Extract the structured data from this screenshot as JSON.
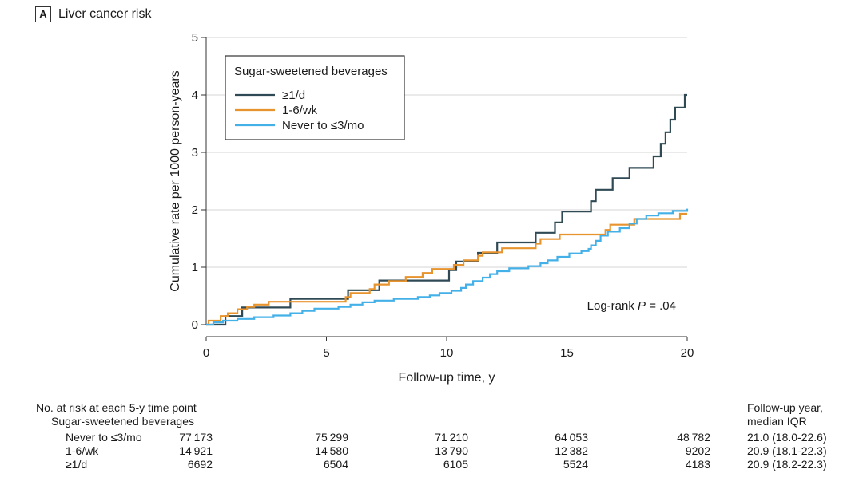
{
  "panel": {
    "letter": "A",
    "title": "Liver cancer risk"
  },
  "chart_data": {
    "type": "line",
    "step": true,
    "title": "Liver cancer risk",
    "xlabel": "Follow-up time, y",
    "ylabel": "Cumulative rate per 1000 person-years",
    "xlim": [
      0,
      20
    ],
    "ylim": [
      0,
      5
    ],
    "xticks": [
      0,
      5,
      10,
      15,
      20
    ],
    "yticks": [
      0,
      1,
      2,
      3,
      4,
      5
    ],
    "grid": "horizontal",
    "legend": {
      "title": "Sugar-sweetened beverages",
      "position": "top-left"
    },
    "annotation": {
      "prefix": "Log-rank ",
      "italic": "P",
      "suffix": " = .04"
    },
    "series": [
      {
        "name": "≥1/d",
        "color": "#2f4a55",
        "points": [
          [
            0,
            0
          ],
          [
            0.8,
            0
          ],
          [
            0.8,
            0.15
          ],
          [
            1.5,
            0.15
          ],
          [
            1.5,
            0.3
          ],
          [
            3.5,
            0.3
          ],
          [
            3.5,
            0.45
          ],
          [
            5.9,
            0.45
          ],
          [
            5.9,
            0.6
          ],
          [
            7.2,
            0.6
          ],
          [
            7.2,
            0.77
          ],
          [
            10.1,
            0.77
          ],
          [
            10.1,
            0.95
          ],
          [
            10.4,
            0.95
          ],
          [
            10.4,
            1.1
          ],
          [
            11.3,
            1.1
          ],
          [
            11.3,
            1.25
          ],
          [
            12.1,
            1.25
          ],
          [
            12.1,
            1.43
          ],
          [
            13.7,
            1.43
          ],
          [
            13.7,
            1.6
          ],
          [
            14.5,
            1.6
          ],
          [
            14.5,
            1.78
          ],
          [
            14.8,
            1.78
          ],
          [
            14.8,
            1.97
          ],
          [
            16.0,
            1.97
          ],
          [
            16.0,
            2.15
          ],
          [
            16.2,
            2.15
          ],
          [
            16.2,
            2.35
          ],
          [
            16.9,
            2.35
          ],
          [
            16.9,
            2.55
          ],
          [
            17.6,
            2.55
          ],
          [
            17.6,
            2.73
          ],
          [
            18.6,
            2.73
          ],
          [
            18.6,
            2.93
          ],
          [
            18.9,
            2.93
          ],
          [
            18.9,
            3.15
          ],
          [
            19.1,
            3.15
          ],
          [
            19.1,
            3.35
          ],
          [
            19.3,
            3.35
          ],
          [
            19.3,
            3.57
          ],
          [
            19.5,
            3.57
          ],
          [
            19.5,
            3.78
          ],
          [
            19.9,
            3.78
          ],
          [
            19.9,
            4.0
          ],
          [
            20,
            4.0
          ]
        ]
      },
      {
        "name": "1-6/wk",
        "color": "#e8942e",
        "points": [
          [
            0,
            0
          ],
          [
            0.1,
            0
          ],
          [
            0.1,
            0.07
          ],
          [
            0.6,
            0.07
          ],
          [
            0.6,
            0.15
          ],
          [
            0.9,
            0.15
          ],
          [
            0.9,
            0.2
          ],
          [
            1.3,
            0.2
          ],
          [
            1.3,
            0.27
          ],
          [
            1.7,
            0.27
          ],
          [
            1.7,
            0.31
          ],
          [
            2.0,
            0.31
          ],
          [
            2.0,
            0.35
          ],
          [
            2.6,
            0.35
          ],
          [
            2.6,
            0.4
          ],
          [
            5.8,
            0.4
          ],
          [
            5.8,
            0.48
          ],
          [
            6.0,
            0.48
          ],
          [
            6.0,
            0.55
          ],
          [
            6.8,
            0.55
          ],
          [
            6.8,
            0.62
          ],
          [
            7.0,
            0.62
          ],
          [
            7.0,
            0.7
          ],
          [
            7.6,
            0.7
          ],
          [
            7.6,
            0.76
          ],
          [
            8.3,
            0.76
          ],
          [
            8.3,
            0.83
          ],
          [
            9.0,
            0.83
          ],
          [
            9.0,
            0.9
          ],
          [
            9.4,
            0.9
          ],
          [
            9.4,
            0.97
          ],
          [
            10.3,
            0.97
          ],
          [
            10.3,
            1.04
          ],
          [
            10.7,
            1.04
          ],
          [
            10.7,
            1.12
          ],
          [
            11.3,
            1.12
          ],
          [
            11.3,
            1.2
          ],
          [
            11.5,
            1.2
          ],
          [
            11.5,
            1.26
          ],
          [
            12.3,
            1.26
          ],
          [
            12.3,
            1.33
          ],
          [
            13.7,
            1.33
          ],
          [
            13.7,
            1.41
          ],
          [
            13.9,
            1.41
          ],
          [
            13.9,
            1.49
          ],
          [
            14.7,
            1.49
          ],
          [
            14.7,
            1.57
          ],
          [
            16.6,
            1.57
          ],
          [
            16.6,
            1.65
          ],
          [
            16.8,
            1.65
          ],
          [
            16.8,
            1.74
          ],
          [
            17.8,
            1.74
          ],
          [
            17.8,
            1.84
          ],
          [
            19.7,
            1.84
          ],
          [
            19.7,
            1.93
          ],
          [
            20,
            1.93
          ]
        ]
      },
      {
        "name": "Never to ≤3/mo",
        "color": "#44b0e8",
        "points": [
          [
            0,
            0
          ],
          [
            0.3,
            0
          ],
          [
            0.3,
            0.04
          ],
          [
            0.7,
            0.04
          ],
          [
            0.7,
            0.07
          ],
          [
            1.3,
            0.07
          ],
          [
            1.3,
            0.1
          ],
          [
            2.0,
            0.1
          ],
          [
            2.0,
            0.13
          ],
          [
            2.8,
            0.13
          ],
          [
            2.8,
            0.16
          ],
          [
            3.5,
            0.16
          ],
          [
            3.5,
            0.2
          ],
          [
            4.0,
            0.2
          ],
          [
            4.0,
            0.24
          ],
          [
            4.5,
            0.24
          ],
          [
            4.5,
            0.28
          ],
          [
            5.5,
            0.28
          ],
          [
            5.5,
            0.31
          ],
          [
            6.0,
            0.31
          ],
          [
            6.0,
            0.35
          ],
          [
            6.5,
            0.35
          ],
          [
            6.5,
            0.39
          ],
          [
            7.0,
            0.39
          ],
          [
            7.0,
            0.42
          ],
          [
            7.8,
            0.42
          ],
          [
            7.8,
            0.45
          ],
          [
            8.8,
            0.45
          ],
          [
            8.8,
            0.48
          ],
          [
            9.3,
            0.48
          ],
          [
            9.3,
            0.51
          ],
          [
            9.7,
            0.51
          ],
          [
            9.7,
            0.55
          ],
          [
            10.2,
            0.55
          ],
          [
            10.2,
            0.59
          ],
          [
            10.6,
            0.59
          ],
          [
            10.6,
            0.64
          ],
          [
            10.8,
            0.64
          ],
          [
            10.8,
            0.7
          ],
          [
            11.1,
            0.7
          ],
          [
            11.1,
            0.76
          ],
          [
            11.5,
            0.76
          ],
          [
            11.5,
            0.82
          ],
          [
            11.8,
            0.82
          ],
          [
            11.8,
            0.88
          ],
          [
            12.1,
            0.88
          ],
          [
            12.1,
            0.93
          ],
          [
            12.6,
            0.93
          ],
          [
            12.6,
            0.98
          ],
          [
            13.4,
            0.98
          ],
          [
            13.4,
            1.02
          ],
          [
            13.9,
            1.02
          ],
          [
            13.9,
            1.07
          ],
          [
            14.2,
            1.07
          ],
          [
            14.2,
            1.12
          ],
          [
            14.6,
            1.12
          ],
          [
            14.6,
            1.18
          ],
          [
            15.1,
            1.18
          ],
          [
            15.1,
            1.24
          ],
          [
            15.6,
            1.24
          ],
          [
            15.6,
            1.28
          ],
          [
            15.9,
            1.28
          ],
          [
            15.9,
            1.32
          ],
          [
            16.0,
            1.32
          ],
          [
            16.0,
            1.38
          ],
          [
            16.2,
            1.38
          ],
          [
            16.2,
            1.46
          ],
          [
            16.4,
            1.46
          ],
          [
            16.4,
            1.55
          ],
          [
            16.7,
            1.55
          ],
          [
            16.7,
            1.62
          ],
          [
            17.2,
            1.62
          ],
          [
            17.2,
            1.68
          ],
          [
            17.6,
            1.68
          ],
          [
            17.6,
            1.76
          ],
          [
            17.9,
            1.76
          ],
          [
            17.9,
            1.84
          ],
          [
            18.3,
            1.84
          ],
          [
            18.3,
            1.9
          ],
          [
            18.8,
            1.9
          ],
          [
            18.8,
            1.94
          ],
          [
            19.4,
            1.94
          ],
          [
            19.4,
            1.98
          ],
          [
            20,
            1.98
          ],
          [
            20,
            2.02
          ]
        ]
      }
    ]
  },
  "risk_table": {
    "title": "No. at risk at each 5-y time point",
    "subtitle": "Sugar-sweetened beverages",
    "followup_header_line1": "Follow-up year,",
    "followup_header_line2": "median IQR",
    "rows": [
      {
        "label": "Never to ≤3/mo",
        "values": [
          "77 173",
          "75 299",
          "71 210",
          "64 053",
          "48 782"
        ],
        "followup": "21.0 (18.0-22.6)"
      },
      {
        "label": "1-6/wk",
        "values": [
          "14 921",
          "14 580",
          "13 790",
          "12 382",
          "9202"
        ],
        "followup": "20.9 (18.1-22.3)"
      },
      {
        "label": "≥1/d",
        "values": [
          "6692",
          "6504",
          "6105",
          "5524",
          "4183"
        ],
        "followup": "20.9 (18.2-22.3)"
      }
    ]
  }
}
